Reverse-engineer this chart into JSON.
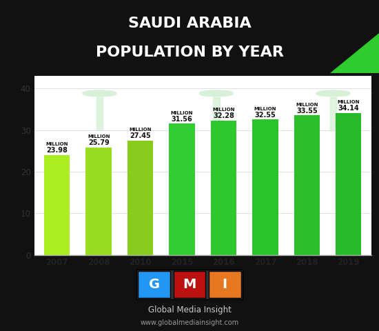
{
  "title_line1": "SAUDI ARABIA",
  "title_line2": "POPULATION BY YEAR",
  "title_bg_color": "#0d3d0d",
  "title_text_color": "#ffffff",
  "chart_bg_color": "#ffffff",
  "footer_bg_color": "#111111",
  "categories": [
    "2007",
    "2008",
    "2010",
    "2015",
    "2016",
    "2017",
    "2018",
    "2019"
  ],
  "values": [
    23.98,
    25.79,
    27.45,
    31.56,
    32.28,
    32.55,
    33.55,
    34.14
  ],
  "bar_colors": [
    "#aaee22",
    "#99dd20",
    "#88cc1e",
    "#33cc33",
    "#2ec82e",
    "#2cc42c",
    "#2abe2a",
    "#28ba28"
  ],
  "labels": [
    "23.98",
    "25.79",
    "27.45",
    "31.56",
    "32.28",
    "32.55",
    "33.55",
    "34.14"
  ],
  "sublabel": "MILLION",
  "ylim": [
    0,
    43
  ],
  "yticks": [
    0,
    10,
    20,
    30,
    40
  ],
  "footer_text1": "Global Media Insight",
  "footer_text2": "www.globalmediainsight.com",
  "figure_width": 5.5,
  "figure_height": 4.8,
  "dpi": 100
}
